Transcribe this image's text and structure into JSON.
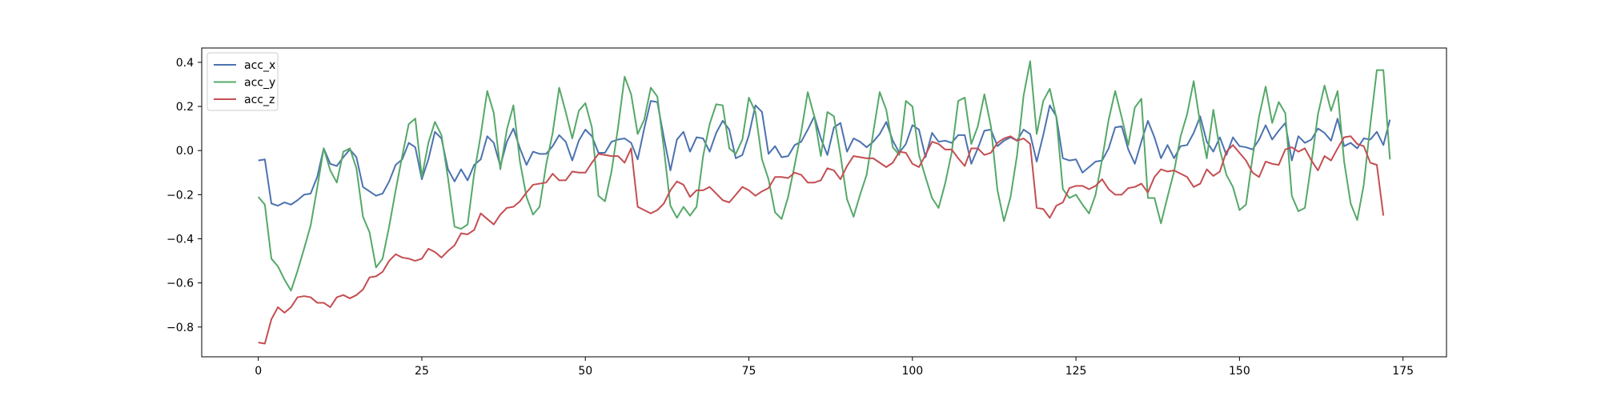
{
  "chart_data": {
    "type": "line",
    "title": "",
    "xlabel": "",
    "ylabel": "",
    "xlim": [
      -8.65,
      181.65
    ],
    "ylim": [
      -0.935,
      0.465
    ],
    "xticks": [
      0,
      25,
      50,
      75,
      100,
      125,
      150,
      175
    ],
    "yticks": [
      -0.8,
      -0.6,
      -0.4,
      -0.2,
      0.0,
      0.2,
      0.4
    ],
    "ytick_labels": [
      "−0.8",
      "−0.6",
      "−0.4",
      "−0.2",
      "0.0",
      "0.2",
      "0.4"
    ],
    "grid": false,
    "legend": {
      "position": "upper-left"
    },
    "series": [
      {
        "name": "acc_x",
        "color": "#4c72b0",
        "values": [
          -0.045,
          -0.04,
          -0.24,
          -0.25,
          -0.235,
          -0.245,
          -0.225,
          -0.2,
          -0.195,
          -0.12,
          0.01,
          -0.06,
          -0.07,
          -0.03,
          0.005,
          -0.03,
          -0.165,
          -0.185,
          -0.205,
          -0.195,
          -0.14,
          -0.065,
          -0.04,
          0.035,
          0.015,
          -0.13,
          -0.04,
          0.085,
          0.055,
          -0.085,
          -0.14,
          -0.085,
          -0.135,
          -0.065,
          -0.04,
          0.065,
          0.035,
          -0.07,
          0.04,
          0.1,
          0.01,
          -0.065,
          -0.005,
          -0.015,
          -0.015,
          0.02,
          0.07,
          0.04,
          -0.045,
          0.045,
          0.095,
          0.065,
          -0.01,
          -0.01,
          0.04,
          0.05,
          0.055,
          0.035,
          -0.04,
          0.1,
          0.225,
          0.22,
          0.06,
          -0.09,
          0.05,
          0.085,
          -0.005,
          0.06,
          0.055,
          -0.005,
          0.08,
          0.135,
          0.095,
          -0.035,
          -0.02,
          0.07,
          0.205,
          0.175,
          -0.015,
          0.02,
          -0.03,
          -0.025,
          0.025,
          0.04,
          0.095,
          0.155,
          0.055,
          -0.02,
          0.105,
          0.125,
          -0.005,
          0.055,
          0.04,
          0.015,
          0.04,
          0.075,
          0.13,
          0.045,
          -0.01,
          0.03,
          0.115,
          0.095,
          -0.03,
          0.08,
          0.04,
          0.045,
          0.035,
          0.07,
          0.07,
          -0.06,
          0.01,
          0.09,
          0.095,
          0.02,
          0.045,
          0.06,
          0.045,
          0.095,
          0.075,
          -0.05,
          0.07,
          0.205,
          0.155,
          -0.035,
          -0.045,
          -0.04,
          -0.1,
          -0.075,
          -0.05,
          -0.045,
          0.01,
          0.105,
          0.11,
          0.005,
          -0.06,
          0.04,
          0.135,
          0.06,
          -0.035,
          0.025,
          -0.035,
          0.02,
          0.025,
          0.08,
          0.155,
          0.04,
          -0.005,
          0.06,
          -0.02,
          0.06,
          0.02,
          0.015,
          0.005,
          0.05,
          0.115,
          0.05,
          0.09,
          0.125,
          -0.045,
          0.065,
          0.035,
          0.05,
          0.1,
          0.08,
          0.045,
          0.145,
          0.02,
          0.035,
          0.01,
          0.055,
          0.05,
          0.085,
          0.025,
          0.14
        ]
      },
      {
        "name": "acc_y",
        "color": "#55a868",
        "values": [
          -0.21,
          -0.245,
          -0.49,
          -0.525,
          -0.585,
          -0.635,
          -0.545,
          -0.445,
          -0.34,
          -0.17,
          0.01,
          -0.09,
          -0.145,
          -0.005,
          0.01,
          -0.08,
          -0.3,
          -0.37,
          -0.53,
          -0.49,
          -0.345,
          -0.18,
          -0.025,
          0.12,
          0.145,
          -0.12,
          0.035,
          0.13,
          0.07,
          -0.125,
          -0.345,
          -0.355,
          -0.335,
          -0.105,
          0.07,
          0.27,
          0.17,
          -0.085,
          0.095,
          0.205,
          -0.05,
          -0.21,
          -0.29,
          -0.255,
          -0.065,
          0.08,
          0.285,
          0.175,
          0.055,
          0.18,
          0.215,
          0.105,
          -0.205,
          -0.23,
          -0.095,
          0.105,
          0.335,
          0.255,
          0.075,
          0.14,
          0.285,
          0.245,
          0.01,
          -0.25,
          -0.305,
          -0.255,
          -0.295,
          -0.255,
          -0.025,
          0.12,
          0.21,
          0.205,
          0.01,
          -0.015,
          0.05,
          0.24,
          0.175,
          -0.04,
          -0.13,
          -0.28,
          -0.31,
          -0.21,
          -0.065,
          0.085,
          0.265,
          0.155,
          -0.025,
          0.175,
          0.155,
          -0.02,
          -0.22,
          -0.3,
          -0.2,
          -0.11,
          0.08,
          0.265,
          0.185,
          0.015,
          -0.02,
          0.225,
          0.2,
          -0.02,
          -0.12,
          -0.215,
          -0.26,
          -0.15,
          -0.01,
          0.225,
          0.24,
          0.03,
          0.11,
          0.255,
          0.11,
          -0.18,
          -0.32,
          -0.21,
          -0.02,
          0.25,
          0.405,
          0.075,
          0.225,
          0.28,
          0.15,
          -0.175,
          -0.215,
          -0.2,
          -0.245,
          -0.285,
          -0.2,
          -0.04,
          0.14,
          0.27,
          0.15,
          0.025,
          0.195,
          0.235,
          -0.215,
          -0.215,
          -0.33,
          -0.21,
          -0.095,
          0.065,
          0.165,
          0.315,
          0.12,
          -0.035,
          0.185,
          0.005,
          -0.11,
          -0.165,
          -0.27,
          -0.245,
          -0.03,
          0.155,
          0.29,
          0.125,
          0.22,
          0.17,
          -0.205,
          -0.275,
          -0.26,
          -0.055,
          0.165,
          0.295,
          0.18,
          0.27,
          -0.05,
          -0.24,
          -0.315,
          -0.155,
          0.115,
          0.365,
          0.365,
          -0.04
        ]
      },
      {
        "name": "acc_z",
        "color": "#c44e52",
        "values": [
          -0.87,
          -0.875,
          -0.765,
          -0.71,
          -0.735,
          -0.71,
          -0.665,
          -0.66,
          -0.665,
          -0.69,
          -0.69,
          -0.71,
          -0.665,
          -0.655,
          -0.67,
          -0.655,
          -0.63,
          -0.575,
          -0.57,
          -0.55,
          -0.5,
          -0.47,
          -0.485,
          -0.49,
          -0.5,
          -0.49,
          -0.445,
          -0.46,
          -0.485,
          -0.455,
          -0.43,
          -0.375,
          -0.38,
          -0.36,
          -0.285,
          -0.31,
          -0.335,
          -0.29,
          -0.26,
          -0.255,
          -0.23,
          -0.19,
          -0.155,
          -0.15,
          -0.145,
          -0.105,
          -0.135,
          -0.135,
          -0.095,
          -0.1,
          -0.1,
          -0.055,
          -0.015,
          -0.02,
          -0.025,
          -0.025,
          -0.055,
          0.01,
          -0.255,
          -0.27,
          -0.285,
          -0.27,
          -0.24,
          -0.18,
          -0.14,
          -0.155,
          -0.21,
          -0.18,
          -0.18,
          -0.165,
          -0.195,
          -0.225,
          -0.235,
          -0.2,
          -0.165,
          -0.18,
          -0.205,
          -0.185,
          -0.17,
          -0.12,
          -0.12,
          -0.125,
          -0.1,
          -0.11,
          -0.145,
          -0.145,
          -0.135,
          -0.08,
          -0.09,
          -0.13,
          -0.07,
          -0.025,
          -0.03,
          -0.035,
          -0.035,
          -0.055,
          -0.075,
          -0.055,
          -0.005,
          -0.01,
          -0.06,
          -0.075,
          -0.02,
          0.04,
          0.03,
          0.005,
          0.005,
          -0.035,
          -0.07,
          0.01,
          0.01,
          -0.02,
          -0.01,
          0.035,
          0.055,
          0.065,
          0.045,
          0.055,
          0.03,
          -0.26,
          -0.265,
          -0.305,
          -0.25,
          -0.235,
          -0.17,
          -0.16,
          -0.16,
          -0.175,
          -0.16,
          -0.13,
          -0.175,
          -0.2,
          -0.2,
          -0.17,
          -0.165,
          -0.15,
          -0.19,
          -0.12,
          -0.085,
          -0.095,
          -0.09,
          -0.105,
          -0.12,
          -0.165,
          -0.15,
          -0.085,
          -0.115,
          -0.095,
          -0.005,
          0.025,
          -0.01,
          -0.045,
          -0.1,
          -0.12,
          -0.05,
          -0.06,
          -0.065,
          0.005,
          0.015,
          -0.005,
          0.01,
          -0.045,
          -0.09,
          -0.025,
          -0.045,
          0.01,
          0.06,
          0.065,
          0.03,
          0.02,
          -0.055,
          -0.065,
          -0.295
        ]
      }
    ]
  }
}
